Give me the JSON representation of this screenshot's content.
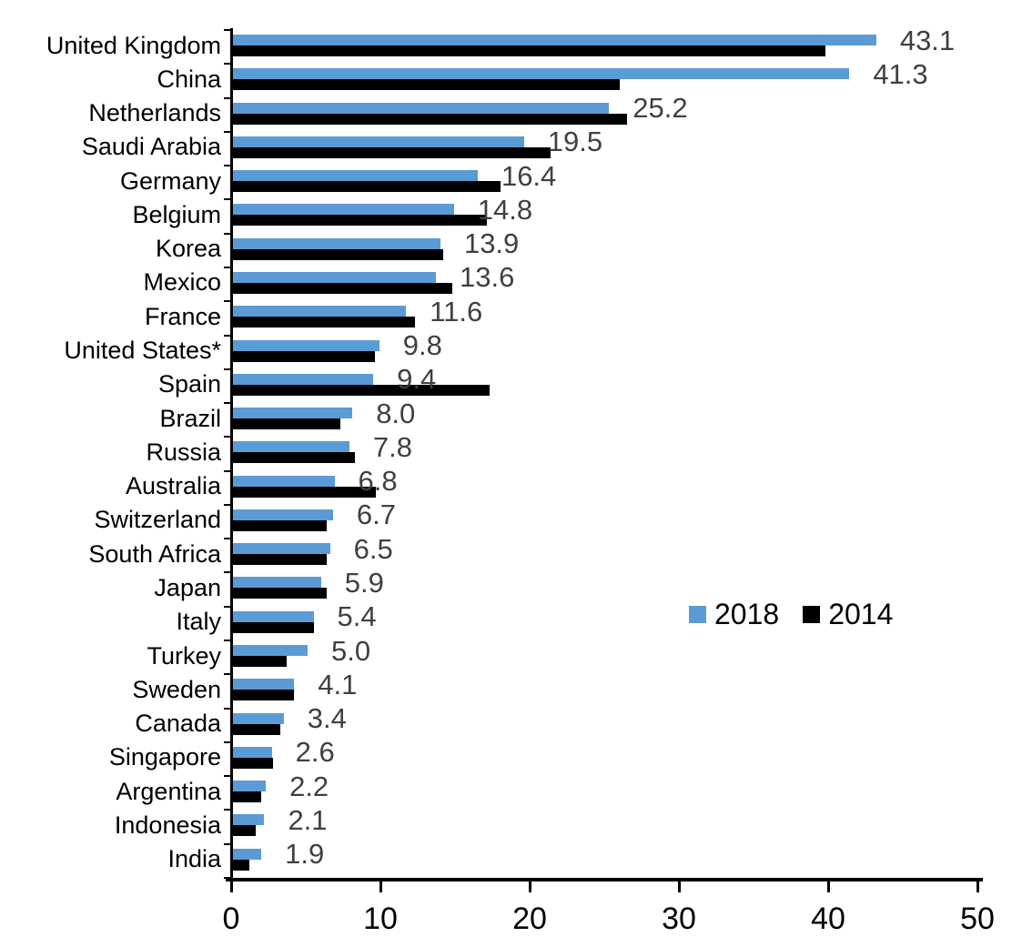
{
  "chart_data": {
    "type": "bar",
    "orientation": "horizontal",
    "title": "",
    "xlabel": "",
    "ylabel": "",
    "xlim": [
      0,
      50
    ],
    "x_ticks": [
      0,
      10,
      20,
      30,
      40,
      50
    ],
    "grid": false,
    "legend_position": "middle-right",
    "categories": [
      "United Kingdom",
      "China",
      "Netherlands",
      "Saudi Arabia",
      "Germany",
      "Belgium",
      "Korea",
      "Mexico",
      "France",
      "United States*",
      "Spain",
      "Brazil",
      "Russia",
      "Australia",
      "Switzerland",
      "South Africa",
      "Japan",
      "Italy",
      "Turkey",
      "Sweden",
      "Canada",
      "Singapore",
      "Argentina",
      "Indonesia",
      "India"
    ],
    "series": [
      {
        "name": "2018",
        "color": "#5B9BD5",
        "values": [
          43.1,
          41.3,
          25.2,
          19.5,
          16.4,
          14.8,
          13.9,
          13.6,
          11.6,
          9.8,
          9.4,
          8.0,
          7.8,
          6.8,
          6.7,
          6.5,
          5.9,
          5.4,
          5.0,
          4.1,
          3.4,
          2.6,
          2.2,
          2.1,
          1.9
        ],
        "data_labels": [
          "43.1",
          "41.3",
          "25.2",
          "19.5",
          "16.4",
          "14.8",
          "13.9",
          "13.6",
          "11.6",
          "9.8",
          "9.4",
          "8.0",
          "7.8",
          "6.8",
          "6.7",
          "6.5",
          "5.9",
          "5.4",
          "5.0",
          "4.1",
          "3.4",
          "2.6",
          "2.2",
          "2.1",
          "1.9"
        ]
      },
      {
        "name": "2014",
        "color": "#000000",
        "values": [
          39.7,
          25.9,
          26.4,
          21.3,
          17.9,
          17.0,
          14.1,
          14.7,
          12.2,
          9.5,
          17.2,
          7.2,
          8.2,
          9.6,
          6.3,
          6.3,
          6.3,
          5.4,
          3.6,
          4.1,
          3.2,
          2.7,
          1.9,
          1.5,
          1.1
        ]
      }
    ],
    "value_label_color": "#404040",
    "axis_color": "#000000"
  }
}
